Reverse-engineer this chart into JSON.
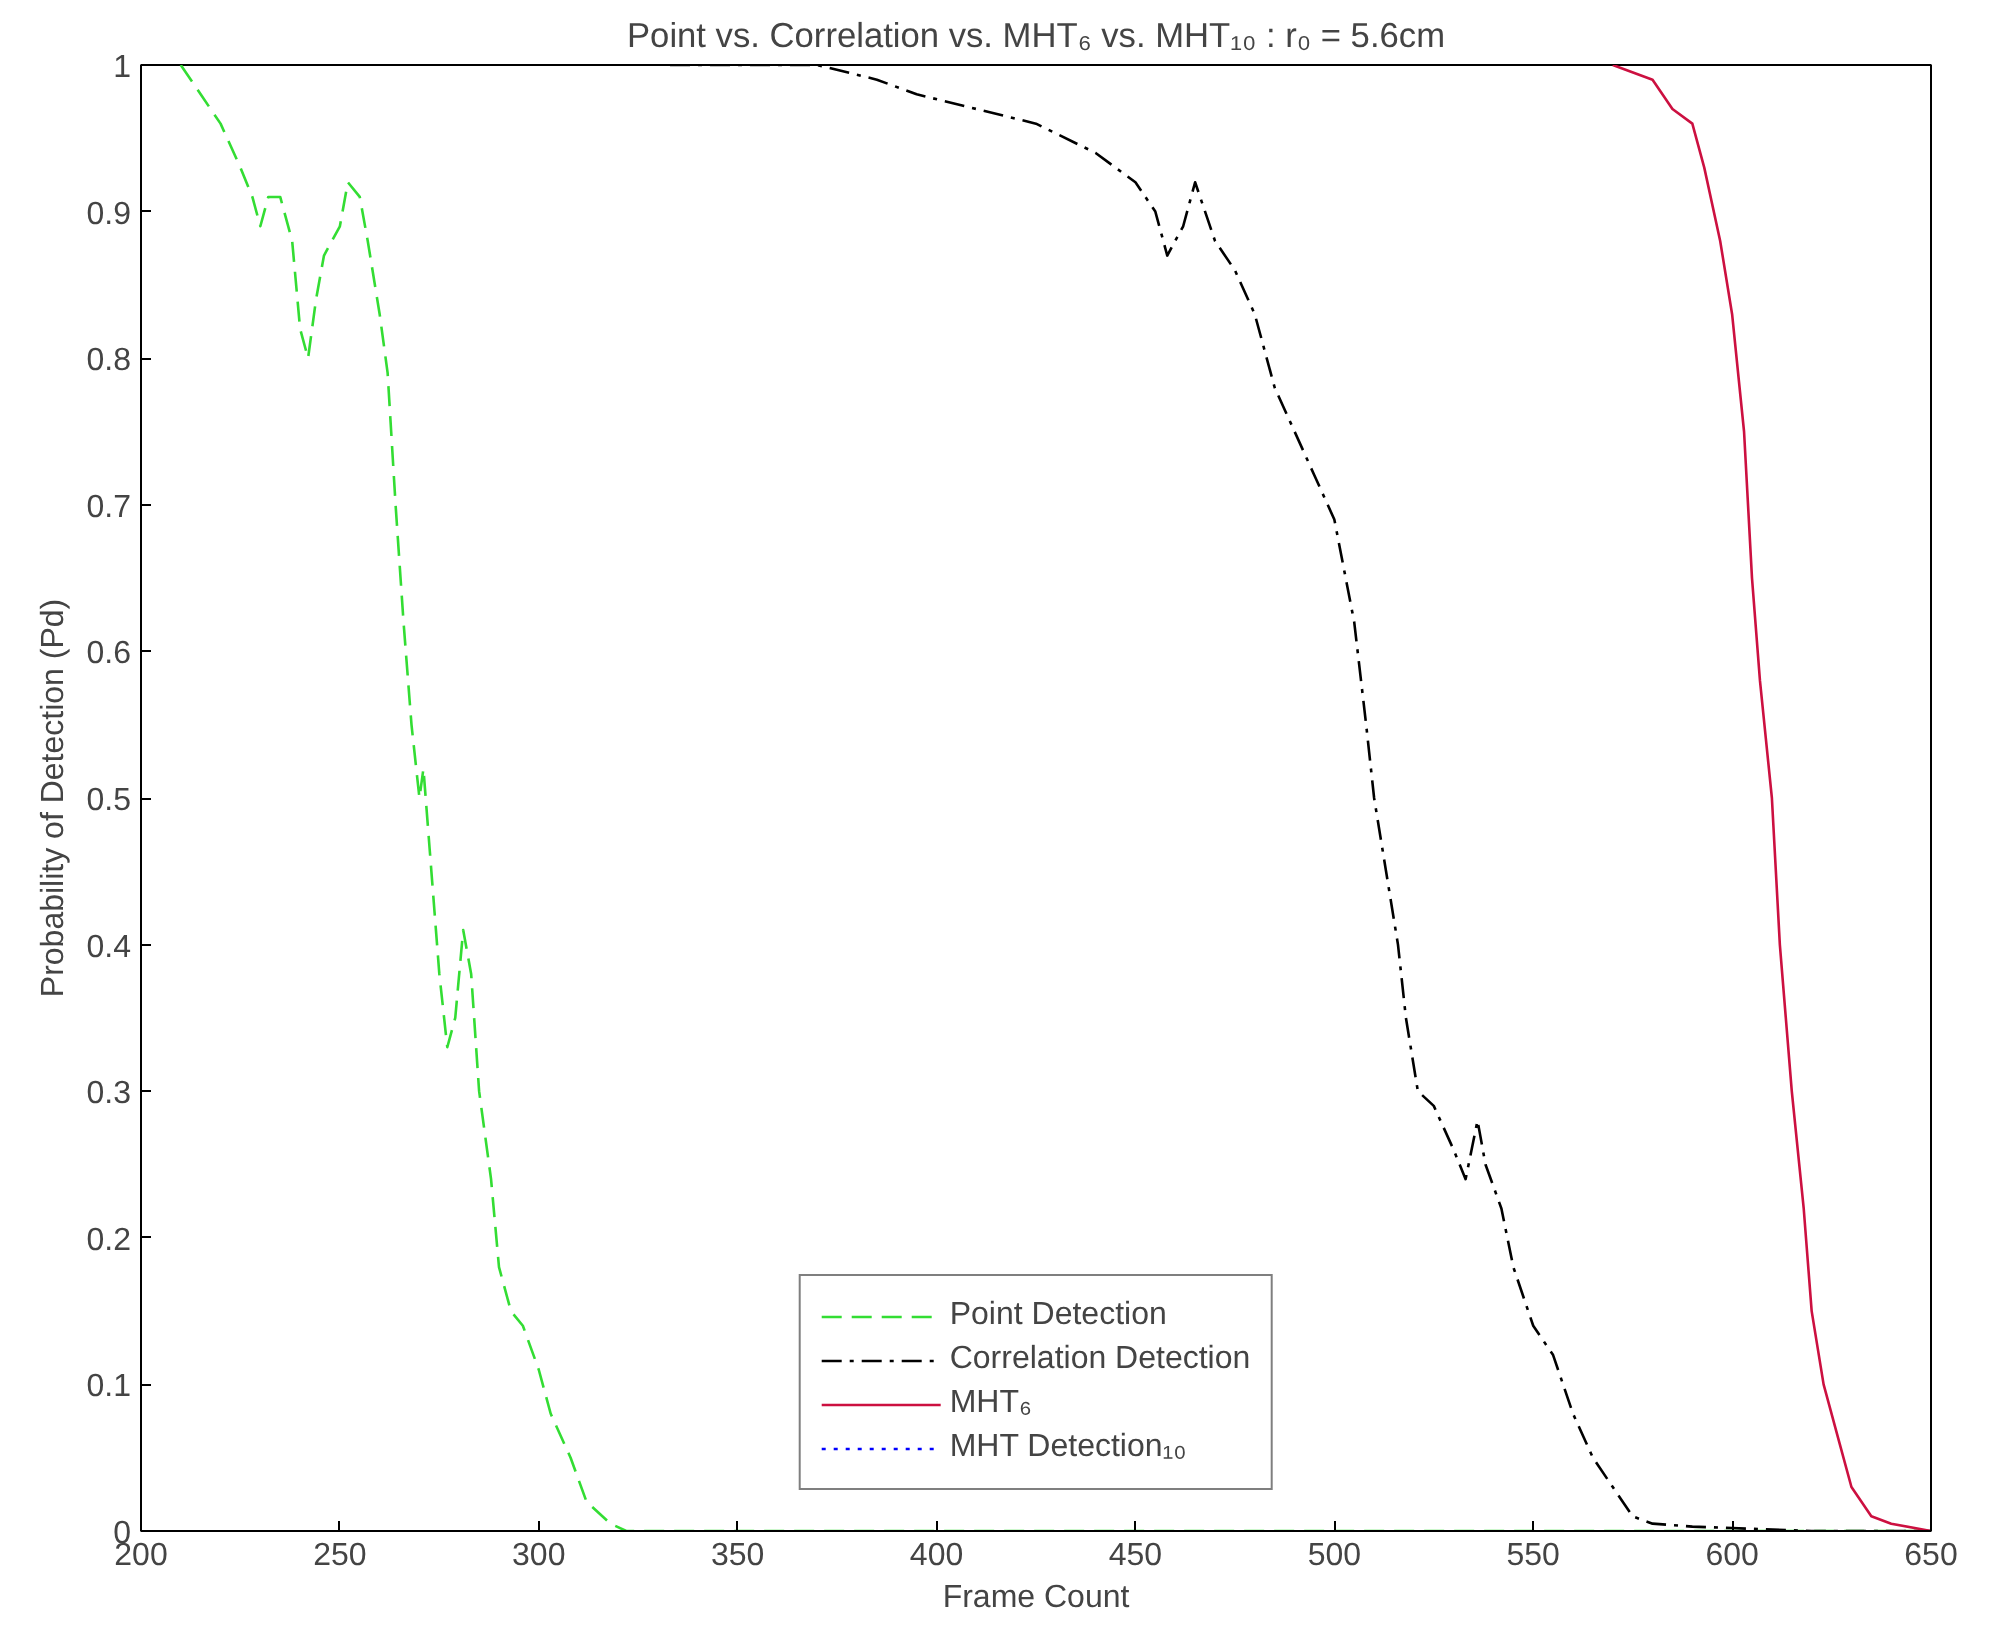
{
  "chart_data": {
    "type": "line",
    "title": "Point vs. Correlation vs. MHT₆ vs. MHT₁₀ : r₀ = 5.6cm",
    "xlabel": "Frame Count",
    "ylabel": "Probability of Detection (Pd)",
    "xlim": [
      200,
      650
    ],
    "ylim": [
      0,
      1
    ],
    "xticks": [
      200,
      250,
      300,
      350,
      400,
      450,
      500,
      550,
      600,
      650
    ],
    "yticks": [
      0,
      {
        "value": 0.1,
        "label": "0.1"
      },
      {
        "value": 0.2,
        "label": "0.2"
      },
      {
        "value": 0.3,
        "label": "0.3"
      },
      {
        "value": 0.4,
        "label": "0.4"
      },
      {
        "value": 0.5,
        "label": "0.5"
      },
      {
        "value": 0.6,
        "label": "0.6"
      },
      {
        "value": 0.7,
        "label": "0.7"
      },
      {
        "value": 0.8,
        "label": "0.8"
      },
      {
        "value": 0.9,
        "label": "0.9"
      },
      1
    ],
    "grid": false,
    "legend": "bottom",
    "marker": "none",
    "series": [
      {
        "name": "Point Detection",
        "color": "#33dd33",
        "line_style": "dashed",
        "x": [
          210,
          215,
          220,
          225,
          228,
          230,
          232,
          235,
          238,
          240,
          242,
          244,
          246,
          250,
          252,
          255,
          257,
          260,
          262,
          264,
          266,
          268,
          270,
          271,
          273,
          275,
          277,
          279,
          281,
          283,
          285,
          288,
          290,
          293,
          296,
          300,
          303,
          308,
          312,
          318,
          322,
          650
        ],
        "values": [
          1.0,
          0.98,
          0.96,
          0.93,
          0.91,
          0.89,
          0.91,
          0.91,
          0.88,
          0.82,
          0.8,
          0.84,
          0.87,
          0.89,
          0.92,
          0.91,
          0.88,
          0.83,
          0.79,
          0.7,
          0.62,
          0.55,
          0.5,
          0.52,
          0.45,
          0.38,
          0.33,
          0.35,
          0.41,
          0.38,
          0.3,
          0.24,
          0.18,
          0.15,
          0.14,
          0.11,
          0.08,
          0.05,
          0.02,
          0.005,
          0,
          0
        ]
      },
      {
        "name": "Correlation Detection",
        "color": "#000000",
        "line_style": "dashdot",
        "x": [
          333,
          370,
          385,
          395,
          410,
          425,
          440,
          450,
          455,
          458,
          462,
          465,
          470,
          475,
          480,
          485,
          490,
          495,
          500,
          505,
          508,
          510,
          513,
          516,
          518,
          521,
          525,
          530,
          533,
          536,
          538,
          542,
          545,
          550,
          555,
          560,
          565,
          570,
          575,
          580,
          590,
          600,
          620,
          650
        ],
        "values": [
          1.0,
          1.0,
          0.99,
          0.98,
          0.97,
          0.96,
          0.94,
          0.92,
          0.9,
          0.87,
          0.89,
          0.92,
          0.88,
          0.86,
          0.83,
          0.78,
          0.75,
          0.72,
          0.69,
          0.62,
          0.55,
          0.5,
          0.45,
          0.4,
          0.35,
          0.3,
          0.29,
          0.26,
          0.24,
          0.28,
          0.25,
          0.22,
          0.18,
          0.14,
          0.12,
          0.08,
          0.05,
          0.03,
          0.01,
          0.005,
          0.003,
          0.002,
          0,
          0
        ]
      },
      {
        "name": "MHT₆",
        "color": "#cc1040",
        "line_style": "solid",
        "x": [
          570,
          580,
          585,
          590,
          593,
          597,
          600,
          603,
          605,
          607,
          610,
          612,
          615,
          618,
          620,
          623,
          627,
          630,
          635,
          640,
          650
        ],
        "values": [
          1.0,
          0.99,
          0.97,
          0.96,
          0.93,
          0.88,
          0.83,
          0.75,
          0.65,
          0.58,
          0.5,
          0.4,
          0.3,
          0.22,
          0.15,
          0.1,
          0.06,
          0.03,
          0.01,
          0.005,
          0
        ]
      },
      {
        "name": "MHT Detection₁₀",
        "color": "#0000ff",
        "line_style": "dotted"
      }
    ]
  }
}
